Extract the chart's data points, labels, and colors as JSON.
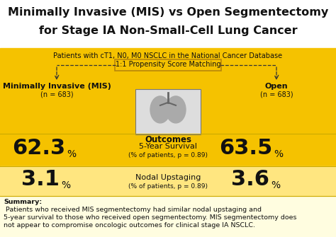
{
  "title_line1": "Minimally Invasive (MIS) vs Open Segmentectomy",
  "title_line2": "for Stage IA Non-Small-Cell Lung Cancer",
  "subtitle": "Patients with cT1, N0, M0 NSCLC in the National Cancer Database",
  "propensity_label": "1:1 Propensity Score Matching",
  "left_group_label": "Minimally Invasive (MIS)",
  "left_group_n": "(n = 683)",
  "right_group_label": "Open",
  "right_group_n": "(n = 683)",
  "center_label": "Outcomes",
  "metric1_label": "5-Year Survival",
  "metric1_sub": "(% of patients, p = 0.89)",
  "metric1_left_big": "62.3",
  "metric1_right_big": "63.5",
  "metric2_label": "Nodal Upstaging",
  "metric2_sub": "(% of patients, p = 0.89)",
  "metric2_left_big": "3.1",
  "metric2_right_big": "3.6",
  "summary_bold": "Summary:",
  "summary_text": " Patients who received MIS segmentectomy had similar nodal upstaging and\n5-year survival to those who received open segmentectomy. MIS segmentectomy does\nnot appear to compromise oncologic outcomes for clinical stage IA NSCLC.",
  "yellow_bright": "#F5C200",
  "yellow_light": "#FFE680",
  "white_bg": "#FFFFFF",
  "summary_bg": "#FFFDE0",
  "text_dark": "#111111",
  "border_gold": "#B8860B",
  "title_fs": 11.5,
  "subtitle_fs": 7,
  "group_label_fs": 8,
  "group_n_fs": 7,
  "psm_fs": 7,
  "metric_big_fs": 22,
  "metric_pct_fs": 10,
  "metric_label_fs": 8,
  "metric_sub_fs": 6.5,
  "summary_fs": 6.8,
  "outcomes_fs": 8.5
}
